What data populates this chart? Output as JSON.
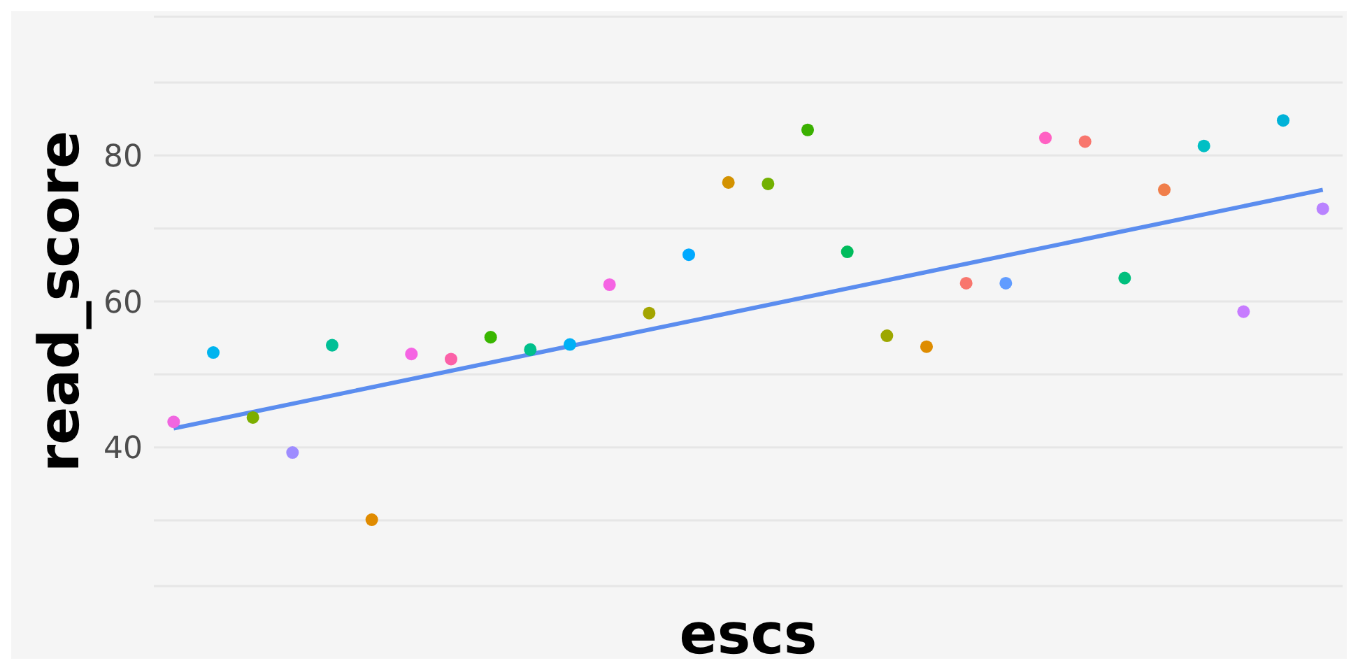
{
  "chart_data": {
    "type": "scatter",
    "xlabel": "escs",
    "ylabel": "read_score",
    "categories": [
      null,
      null,
      null,
      null,
      null,
      null,
      null,
      null,
      null,
      null,
      null,
      null,
      null,
      null,
      null,
      null,
      null,
      null,
      null,
      null,
      null,
      null,
      null,
      null,
      null,
      null,
      null,
      null,
      null,
      null
    ],
    "ylim": [
      21,
      99
    ],
    "yticks": [
      {
        "value": 30,
        "label": null
      },
      40,
      {
        "value": 50,
        "label": null
      },
      60,
      {
        "value": 70,
        "label": null
      },
      80,
      {
        "value": 90,
        "label": null
      }
    ],
    "tick_labels": "y",
    "grid": "y",
    "series": [
      {
        "marker": "circle",
        "values": [
          43.5,
          53.0,
          44.1,
          39.3,
          54.0,
          30.1,
          52.8,
          52.1,
          55.1,
          53.4,
          54.1,
          62.3,
          58.4,
          66.4,
          76.3,
          76.1,
          83.5,
          66.8,
          55.3,
          53.8,
          62.5,
          62.5,
          82.4,
          81.9,
          63.2,
          75.3,
          81.3,
          58.6,
          84.8,
          72.7
        ],
        "colors": [
          "#f066e0",
          "#00b4ef",
          "#7cae00",
          "#9e8cff",
          "#00bf96",
          "#e08b00",
          "#f564e3",
          "#fb61a8",
          "#39b600",
          "#00c08b",
          "#00b0f6",
          "#f564e3",
          "#a3a500",
          "#00a9ff",
          "#d39200",
          "#72b000",
          "#3ab000",
          "#00bc5c",
          "#9da700",
          "#de8c00",
          "#f8766d",
          "#619cff",
          "#ff61c3",
          "#f8766d",
          "#00bf7d",
          "#f07e4a",
          "#00bfc4",
          "#c77cff",
          "#00b2d8",
          "#b983ff"
        ]
      },
      {
        "type": "line",
        "color": "#5b8def",
        "values": [
          42.6,
          null,
          null,
          null,
          null,
          null,
          null,
          null,
          null,
          null,
          null,
          null,
          null,
          null,
          null,
          null,
          null,
          null,
          null,
          null,
          null,
          null,
          null,
          null,
          null,
          null,
          null,
          null,
          null,
          75.3
        ]
      }
    ]
  }
}
